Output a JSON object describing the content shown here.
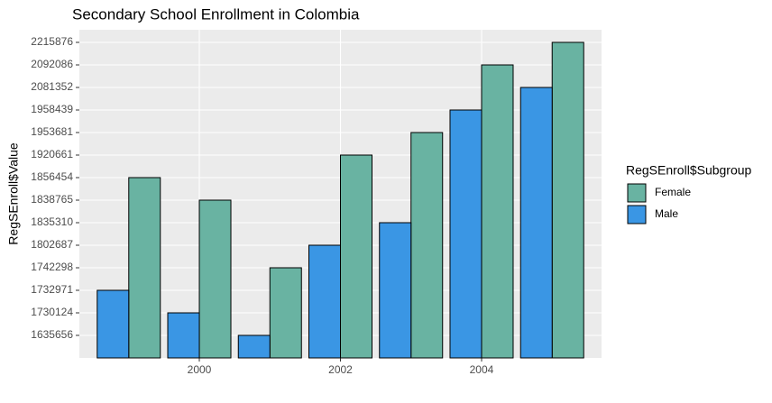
{
  "chart_data": {
    "type": "bar",
    "title": "Secondary School Enrollment in Colombia",
    "y_label": "RegSEnroll$Value",
    "legend_title": "RegSEnroll$Subgroup",
    "x": [
      1999,
      2000,
      2001,
      2002,
      2003,
      2004,
      2005
    ],
    "xlim": [
      1998.3,
      2005.7
    ],
    "xticks": [
      2000,
      2002,
      2004
    ],
    "y_scale": "discrete",
    "yticks": [
      1635656,
      1730124,
      1732971,
      1742298,
      1802687,
      1835310,
      1838765,
      1856454,
      1920661,
      1953681,
      1958439,
      2081352,
      2092086,
      2215876
    ],
    "grid": true,
    "series": [
      {
        "name": "Female",
        "color": "#69b3a2",
        "values": [
          1856454,
          1838765,
          1742298,
          1920661,
          1953681,
          2092086,
          2215876
        ]
      },
      {
        "name": "Male",
        "color": "#3a96e4",
        "values": [
          1732971,
          1730124,
          1635656,
          1802687,
          1835310,
          1958439,
          2081352
        ]
      }
    ]
  }
}
